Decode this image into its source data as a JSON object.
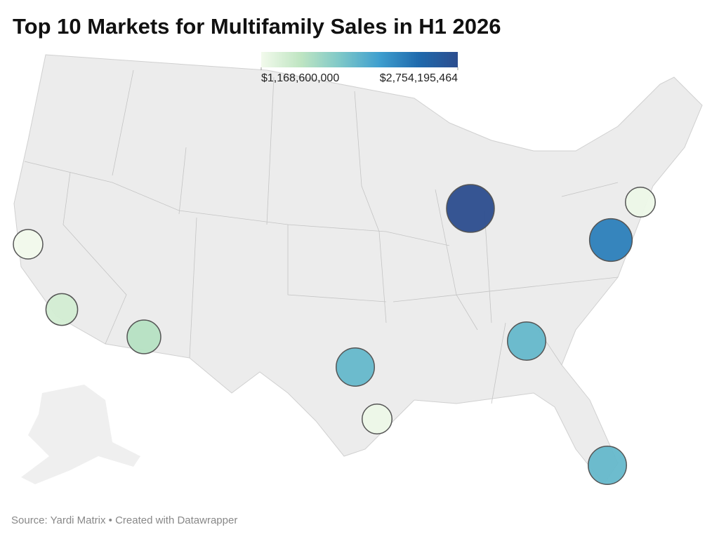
{
  "title": "Top 10 Markets for Multifamily Sales in H1 2026",
  "legend": {
    "ticks": [
      {
        "value": 1168600000,
        "label": "$1,168,600,000"
      },
      {
        "value": 2754195464,
        "label": "$2,754,195,464"
      }
    ],
    "colors": [
      "#f2faec",
      "#bfe5c2",
      "#7ec8c8",
      "#3f9fcf",
      "#1f6aad",
      "#2c4d8e"
    ]
  },
  "markers": {
    "values": [
      1168600000,
      1360000000,
      1530000000,
      1930000000,
      1200000000,
      2754195464,
      2310000000,
      1200000000,
      1930000000,
      1930000000
    ]
  },
  "source": "Source: Yardi Matrix • Created with Datawrapper"
}
